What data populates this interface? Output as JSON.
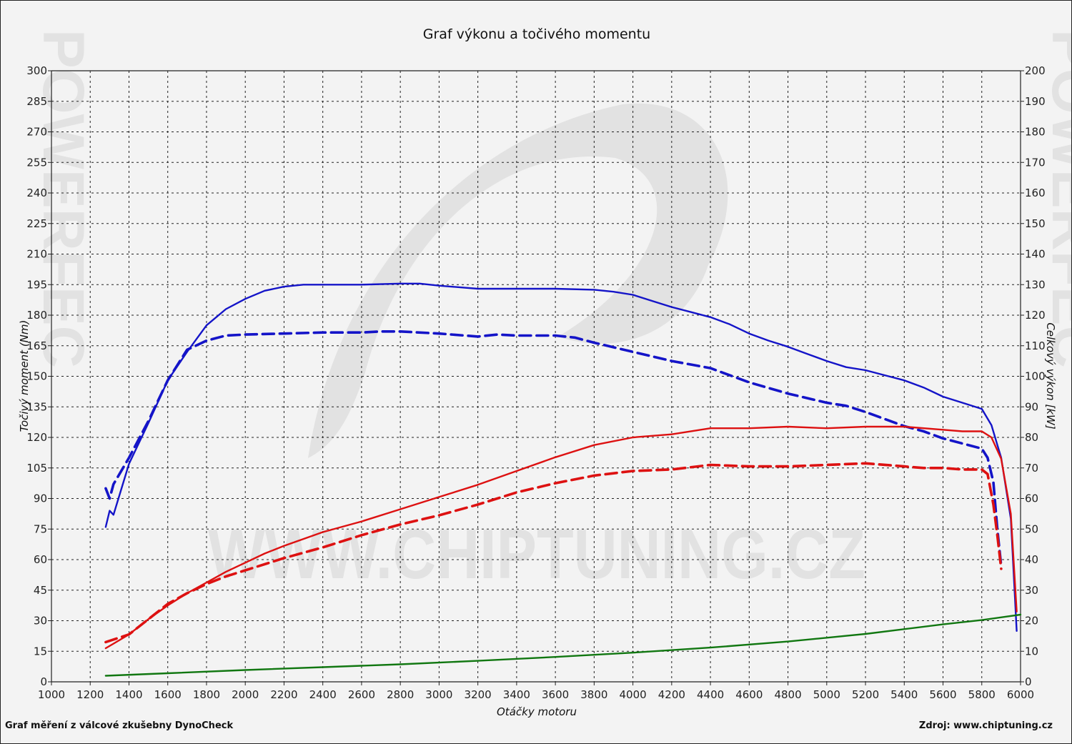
{
  "title": "Graf výkonu a točivého momentu",
  "footer_left": "Graf měření z válcové zkušebny DynoCheck",
  "footer_right": "Zdroj: www.chiptuning.cz",
  "watermark": {
    "center": "WWW.CHIPTUNING.CZ",
    "side": "POWERFEC"
  },
  "colors": {
    "torque": "#1414c8",
    "power": "#dd1111",
    "loss": "#117711",
    "grid": "#222222"
  },
  "chart_data": {
    "type": "line",
    "xlabel": "Otáčky motoru",
    "ylabel_left": "Točivý moment (Nm)",
    "ylabel_right": "Celkový výkon [kW]",
    "xlim": [
      1000,
      6000
    ],
    "ylim_left": [
      0,
      300
    ],
    "ylim_right": [
      0,
      200
    ],
    "x_ticks": [
      1000,
      1200,
      1400,
      1600,
      1800,
      2000,
      2200,
      2400,
      2600,
      2800,
      3000,
      3200,
      3400,
      3600,
      3800,
      4000,
      4200,
      4400,
      4600,
      4800,
      5000,
      5200,
      5400,
      5600,
      5800,
      6000
    ],
    "y_ticks_left": [
      0,
      15,
      30,
      45,
      60,
      75,
      90,
      105,
      120,
      135,
      150,
      165,
      180,
      195,
      210,
      225,
      240,
      255,
      270,
      285,
      300
    ],
    "y_ticks_right": [
      0,
      10,
      20,
      30,
      40,
      50,
      60,
      70,
      80,
      90,
      100,
      110,
      120,
      130,
      140,
      150,
      160,
      170,
      180,
      190,
      200
    ],
    "grid": true,
    "series": [
      {
        "axis": "left",
        "color": "#1414c8",
        "dash": false,
        "x": [
          1280,
          1300,
          1320,
          1400,
          1500,
          1600,
          1700,
          1800,
          1900,
          2000,
          2100,
          2200,
          2300,
          2400,
          2600,
          2800,
          2900,
          3000,
          3200,
          3400,
          3600,
          3800,
          3900,
          4000,
          4100,
          4200,
          4300,
          4400,
          4500,
          4600,
          4700,
          4800,
          4900,
          5000,
          5100,
          5200,
          5300,
          5400,
          5500,
          5600,
          5700,
          5800,
          5850,
          5900,
          5950,
          5980
        ],
        "y": [
          76,
          84,
          82,
          107,
          127,
          148,
          162,
          175,
          183,
          188,
          192,
          194,
          195,
          195,
          195,
          195.5,
          195.5,
          194.5,
          193,
          193,
          193,
          192.5,
          191.5,
          190,
          187,
          184,
          181.5,
          179,
          175.5,
          171,
          167.5,
          164.5,
          161,
          157.5,
          154.5,
          153,
          150.5,
          148,
          144.5,
          140,
          137,
          134,
          126,
          110,
          80,
          25
        ]
      },
      {
        "axis": "left",
        "color": "#1414c8",
        "dash": true,
        "x": [
          1280,
          1300,
          1320,
          1400,
          1500,
          1600,
          1700,
          1800,
          1900,
          2000,
          2200,
          2400,
          2600,
          2700,
          2800,
          3000,
          3200,
          3300,
          3400,
          3600,
          3700,
          3800,
          4000,
          4200,
          4400,
          4500,
          4600,
          4800,
          5000,
          5100,
          5200,
          5300,
          5400,
          5500,
          5600,
          5700,
          5800,
          5830,
          5860,
          5880,
          5900
        ],
        "y": [
          95,
          90,
          97,
          110,
          128,
          148,
          163,
          167.5,
          170,
          170.5,
          171,
          171.5,
          171.5,
          172,
          172,
          171,
          169.5,
          170.5,
          170,
          170,
          169,
          166.5,
          162,
          157.5,
          154,
          150.5,
          147,
          141.5,
          137,
          135.5,
          132.5,
          129,
          125.5,
          123,
          119.5,
          117,
          114.5,
          110,
          98,
          75,
          57
        ]
      },
      {
        "axis": "right",
        "color": "#dd1111",
        "dash": false,
        "x": [
          1280,
          1320,
          1400,
          1500,
          1600,
          1700,
          1800,
          1900,
          2000,
          2100,
          2200,
          2400,
          2600,
          2800,
          3000,
          3200,
          3400,
          3600,
          3800,
          4000,
          4200,
          4400,
          4600,
          4800,
          5000,
          5200,
          5400,
          5600,
          5700,
          5800,
          5850,
          5900,
          5950,
          5980
        ],
        "y": [
          11,
          12.5,
          15.5,
          20.5,
          25,
          29,
          32.5,
          36,
          39,
          42,
          44.5,
          49,
          52.5,
          56.5,
          60.5,
          64.5,
          69,
          73.5,
          77.5,
          80,
          81,
          83,
          83,
          83.5,
          83,
          83.5,
          83.5,
          82.5,
          82,
          82,
          80,
          73,
          55,
          23
        ]
      },
      {
        "axis": "right",
        "color": "#dd1111",
        "dash": true,
        "x": [
          1280,
          1400,
          1500,
          1600,
          1700,
          1800,
          1900,
          2000,
          2200,
          2400,
          2600,
          2800,
          3000,
          3200,
          3400,
          3600,
          3800,
          4000,
          4200,
          4400,
          4600,
          4800,
          5000,
          5200,
          5400,
          5500,
          5600,
          5700,
          5800,
          5830,
          5860,
          5880,
          5900
        ],
        "y": [
          13,
          15.5,
          20.5,
          25.5,
          29,
          32,
          34.5,
          36.5,
          40.5,
          44,
          48,
          51.5,
          54.5,
          58,
          62,
          65,
          67.5,
          69,
          69.5,
          71,
          70.5,
          70.5,
          71,
          71.5,
          70.5,
          70,
          70,
          69.5,
          69.5,
          68,
          58,
          48,
          37
        ]
      },
      {
        "axis": "left",
        "color": "#117711",
        "dash": false,
        "x": [
          1280,
          1600,
          2000,
          2400,
          2800,
          3200,
          3600,
          4000,
          4400,
          4800,
          5200,
          5600,
          5800,
          6000
        ],
        "y": [
          3,
          4.2,
          5.8,
          7.2,
          8.6,
          10.3,
          12.2,
          14.3,
          16.8,
          19.8,
          23.5,
          28.2,
          30.3,
          33
        ]
      }
    ]
  }
}
